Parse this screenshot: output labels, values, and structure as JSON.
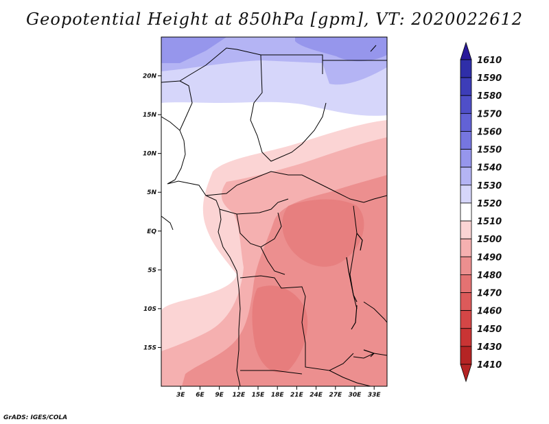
{
  "title": "Geopotential Height at 850hPa [gpm], VT: 2020022612",
  "credit": "GrADS: IGES/COLA",
  "map": {
    "lat_labels": [
      "20N",
      "15N",
      "10N",
      "5N",
      "EQ",
      "5S",
      "10S",
      "15S"
    ],
    "lon_labels": [
      "3E",
      "6E",
      "9E",
      "12E",
      "15E",
      "18E",
      "21E",
      "24E",
      "27E",
      "30E",
      "33E"
    ],
    "lon_range": [
      0,
      35
    ],
    "lat_range": [
      -20,
      25
    ]
  },
  "colorbar": {
    "labels": [
      "1610",
      "1590",
      "1580",
      "1570",
      "1560",
      "1550",
      "1540",
      "1530",
      "1520",
      "1510",
      "1500",
      "1490",
      "1480",
      "1470",
      "1460",
      "1450",
      "1430",
      "1410"
    ],
    "colors": [
      "#2a1a9a",
      "#2f2ea8",
      "#3d3db8",
      "#4f4fc8",
      "#6262d6",
      "#7676e0",
      "#9696ec",
      "#b4b4f4",
      "#d6d6fa",
      "#ffffff",
      "#fbd4d4",
      "#f5b0b0",
      "#ec8f8f",
      "#e47272",
      "#dc5a5a",
      "#d44646",
      "#c93434",
      "#b52424"
    ]
  }
}
